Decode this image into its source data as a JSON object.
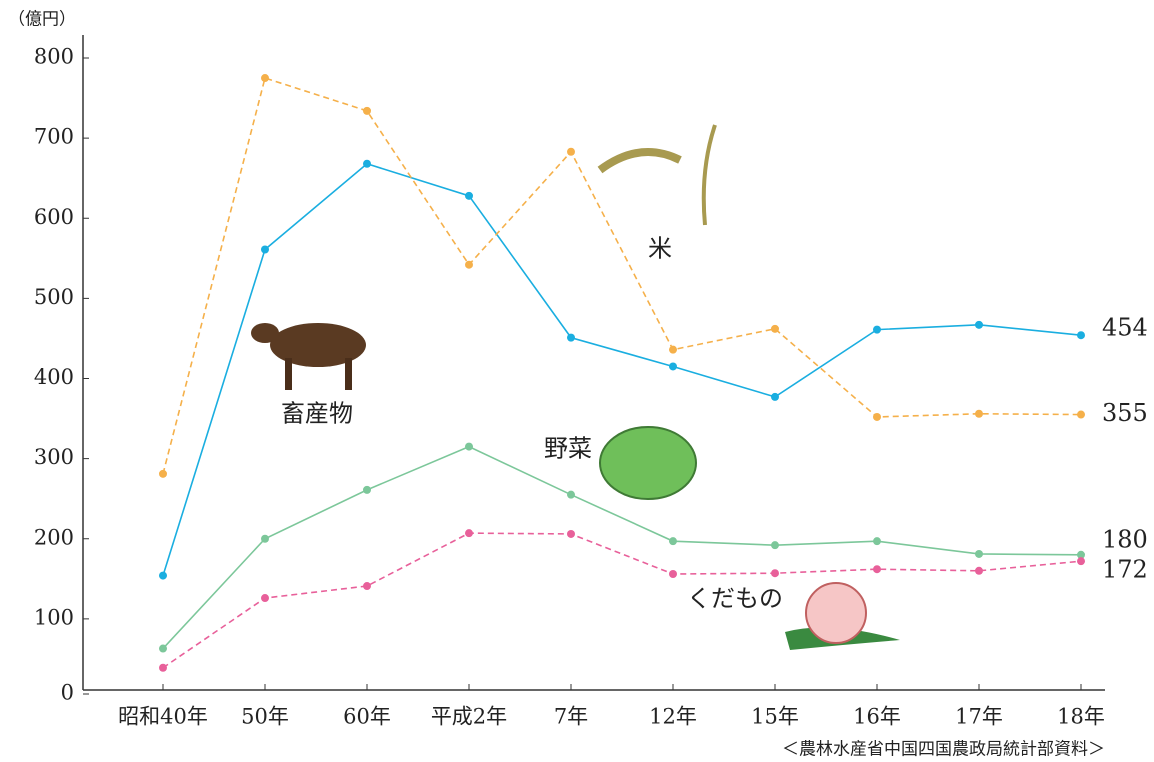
{
  "chart_data": {
    "type": "line",
    "y_unit": "（億円）",
    "source": "＜農林水産省中国四国農政局統計部資料＞",
    "categories": [
      "昭和40年",
      "50年",
      "60年",
      "平成2年",
      "7年",
      "12年",
      "15年",
      "16年",
      "17年",
      "18年"
    ],
    "ylim": [
      0,
      800
    ],
    "yticks": [
      0,
      100,
      200,
      300,
      400,
      500,
      600,
      700,
      800
    ],
    "series": [
      {
        "name": "畜産物",
        "color": "#1aaee0",
        "dashed": false,
        "values": [
          154,
          561,
          668,
          628,
          451,
          415,
          377,
          461,
          467,
          454
        ]
      },
      {
        "name": "米",
        "color": "#f5b04a",
        "dashed": true,
        "values": [
          281,
          775,
          734,
          542,
          683,
          436,
          462,
          352,
          356,
          355
        ]
      },
      {
        "name": "野菜",
        "color": "#7cc79a",
        "dashed": false,
        "values": [
          63,
          200,
          261,
          315,
          255,
          197,
          192,
          197,
          181,
          180
        ]
      },
      {
        "name": "くだもの",
        "color": "#e8609a",
        "dashed": true,
        "values": [
          39,
          126,
          141,
          207,
          206,
          156,
          157,
          162,
          160,
          172
        ]
      }
    ]
  }
}
